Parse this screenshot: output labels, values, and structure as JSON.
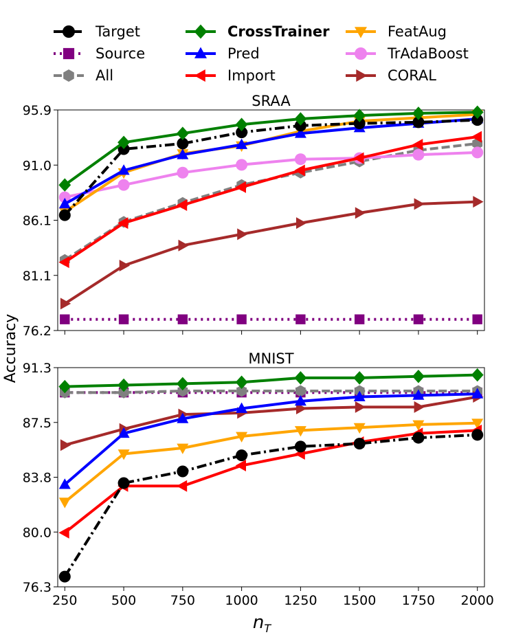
{
  "colors": {
    "Target": "#000000",
    "Source": "#800080",
    "All": "#808080",
    "CrossTrainer": "#008000",
    "Pred": "#0000ff",
    "Import": "#ff0000",
    "FeatAug": "#ffa500",
    "TrAdaBoost": "#ee82ee",
    "CORAL": "#a52a2a"
  },
  "legend": [
    {
      "name": "Target",
      "marker": "circle",
      "dash": "dashdot",
      "bold": false
    },
    {
      "name": "Source",
      "marker": "square",
      "dash": "dotted",
      "bold": false
    },
    {
      "name": "All",
      "marker": "hexagon",
      "dash": "dashed",
      "bold": false
    },
    {
      "name": "CrossTrainer",
      "marker": "diamond",
      "dash": "solid",
      "bold": true
    },
    {
      "name": "Pred",
      "marker": "triangle-up",
      "dash": "solid",
      "bold": false
    },
    {
      "name": "Import",
      "marker": "triangle-left",
      "dash": "solid",
      "bold": false
    },
    {
      "name": "FeatAug",
      "marker": "triangle-down",
      "dash": "solid",
      "bold": false
    },
    {
      "name": "TrAdaBoost",
      "marker": "circle",
      "dash": "solid",
      "bold": false
    },
    {
      "name": "CORAL",
      "marker": "triangle-right",
      "dash": "solid",
      "bold": false
    }
  ],
  "shared": {
    "xlabel": "n",
    "xlabel_sub": "T",
    "ylabel": "Accuracy",
    "x": [
      250,
      500,
      750,
      1000,
      1250,
      1500,
      1750,
      2000
    ],
    "xticks": [
      "250",
      "500",
      "750",
      "1000",
      "1250",
      "1500",
      "1750",
      "2000"
    ]
  },
  "chart_data": [
    {
      "type": "line",
      "title": "SRAA",
      "ylabel": "Accuracy",
      "xlabel": "n_T",
      "x": [
        250,
        500,
        750,
        1000,
        1250,
        1500,
        1750,
        2000
      ],
      "ylim": [
        76.2,
        95.9
      ],
      "yticks": [
        "76.2",
        "81.1",
        "86.1",
        "91.0",
        "95.9"
      ],
      "series": [
        {
          "name": "Source",
          "values": [
            77.2,
            77.2,
            77.2,
            77.2,
            77.2,
            77.2,
            77.2,
            77.2
          ]
        },
        {
          "name": "All",
          "values": [
            82.5,
            85.9,
            87.6,
            89.2,
            90.3,
            91.3,
            92.3,
            92.9
          ]
        },
        {
          "name": "CORAL",
          "values": [
            78.6,
            82.0,
            83.8,
            84.8,
            85.8,
            86.7,
            87.5,
            87.7
          ]
        },
        {
          "name": "TrAdaBoost",
          "values": [
            88.1,
            89.2,
            90.3,
            91.0,
            91.5,
            91.6,
            91.9,
            92.1
          ]
        },
        {
          "name": "Import",
          "values": [
            82.3,
            85.8,
            87.4,
            89.0,
            90.5,
            91.6,
            92.8,
            93.5
          ]
        },
        {
          "name": "FeatAug",
          "values": [
            86.8,
            90.3,
            92.0,
            92.7,
            94.0,
            94.9,
            95.2,
            95.5
          ]
        },
        {
          "name": "Pred",
          "values": [
            87.5,
            90.5,
            91.9,
            92.8,
            93.8,
            94.3,
            94.7,
            95.1
          ]
        },
        {
          "name": "Target",
          "values": [
            86.5,
            92.4,
            92.9,
            93.9,
            94.5,
            94.7,
            94.8,
            95.0
          ]
        },
        {
          "name": "CrossTrainer",
          "values": [
            89.2,
            93.0,
            93.8,
            94.6,
            95.1,
            95.4,
            95.6,
            95.7
          ]
        }
      ]
    },
    {
      "type": "line",
      "title": "MNIST",
      "ylabel": "Accuracy",
      "xlabel": "n_T",
      "x": [
        250,
        500,
        750,
        1000,
        1250,
        1500,
        1750,
        2000
      ],
      "ylim": [
        76.3,
        91.3
      ],
      "yticks": [
        "76.3",
        "80.0",
        "83.8",
        "87.5",
        "91.3"
      ],
      "series": [
        {
          "name": "Source",
          "values": [
            89.6,
            89.6,
            89.6,
            89.6,
            89.6,
            89.6,
            89.6,
            89.6
          ]
        },
        {
          "name": "All",
          "values": [
            89.6,
            89.6,
            89.7,
            89.7,
            89.7,
            89.7,
            89.7,
            89.7
          ]
        },
        {
          "name": "CORAL",
          "values": [
            86.0,
            87.1,
            88.1,
            88.2,
            88.5,
            88.6,
            88.6,
            89.3
          ]
        },
        {
          "name": "Pred",
          "values": [
            83.3,
            86.8,
            87.8,
            88.5,
            89.0,
            89.3,
            89.4,
            89.5
          ]
        },
        {
          "name": "FeatAug",
          "values": [
            82.1,
            85.4,
            85.8,
            86.6,
            87.0,
            87.2,
            87.4,
            87.5
          ]
        },
        {
          "name": "Import",
          "values": [
            80.0,
            83.2,
            83.2,
            84.6,
            85.4,
            86.2,
            86.8,
            87.0
          ]
        },
        {
          "name": "Target",
          "values": [
            77.0,
            83.4,
            84.2,
            85.3,
            85.9,
            86.1,
            86.5,
            86.7
          ]
        },
        {
          "name": "CrossTrainer",
          "values": [
            90.0,
            90.1,
            90.2,
            90.3,
            90.6,
            90.6,
            90.7,
            90.8
          ]
        }
      ]
    }
  ]
}
